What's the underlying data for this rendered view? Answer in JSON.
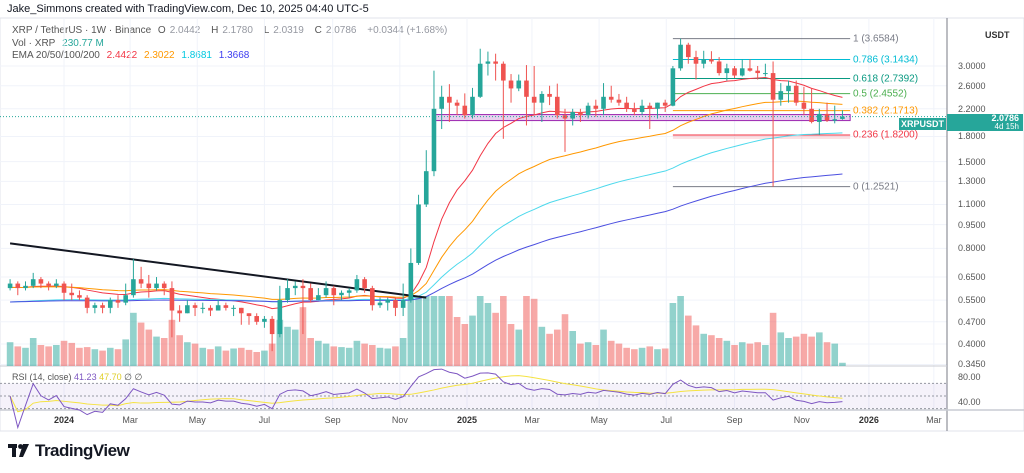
{
  "header": {
    "credit": "Jake_Simmons created with TradingView.com, Dec 10, 2025 04:40 UTC-5"
  },
  "legend": {
    "symbol": "XRP / TetherUS · 1W · Binance",
    "o_label": "O",
    "o": "2.0442",
    "h_label": "H",
    "h": "2.1780",
    "l_label": "L",
    "l": "2.0319",
    "c_label": "C",
    "c": "2.0786",
    "change": "+0.0344 (+1.68%)",
    "vol_label": "Vol · XRP",
    "vol": "230.77 M",
    "ema_label": "EMA 20/50/100/200",
    "ema20": "2.4422",
    "ema50": "2.3022",
    "ema100": "1.8681",
    "ema200": "1.3668"
  },
  "rsi_legend": {
    "label": "RSI (14, close)",
    "rsi": "41.23",
    "ma": "47.70",
    "empty1": "∅",
    "empty2": "∅"
  },
  "price_tag": {
    "symbol": "XRPUSDT",
    "price": "2.0786",
    "countdown": "4d 15h"
  },
  "footer": {
    "brand": "TradingView"
  },
  "colors": {
    "up": "#26a69a",
    "down": "#ef5350",
    "ema20": "#f23645",
    "ema50": "#ff9800",
    "ema100": "#4dd9ec",
    "ema200": "#4b4fe0",
    "rsi": "#7e57c2",
    "rsi_ma": "#f5e342",
    "zone": "#9c27b0"
  },
  "chart_data": {
    "type": "candlestick",
    "symbol": "XRPUSDT",
    "interval": "1W",
    "y_scale": "log",
    "y_unit": "USDT",
    "y_ticks": [
      "3.0000",
      "2.6000",
      "2.2000",
      "1.8000",
      "1.5000",
      "1.3000",
      "1.1000",
      "0.9500",
      "0.8000",
      "0.6500",
      "0.5500",
      "0.4700",
      "0.4000",
      "0.3450"
    ],
    "rsi_ticks": [
      "80.00",
      "40.00"
    ],
    "x_ticks": [
      {
        "label": "2024",
        "date": "2024-01-01",
        "bold": true
      },
      {
        "label": "Mar",
        "date": "2024-03-01"
      },
      {
        "label": "May",
        "date": "2024-05-01"
      },
      {
        "label": "Jul",
        "date": "2024-07-01"
      },
      {
        "label": "Sep",
        "date": "2024-09-01"
      },
      {
        "label": "Nov",
        "date": "2024-11-01"
      },
      {
        "label": "2025",
        "date": "2025-01-01",
        "bold": true
      },
      {
        "label": "Mar",
        "date": "2025-03-01"
      },
      {
        "label": "May",
        "date": "2025-05-01"
      },
      {
        "label": "Jul",
        "date": "2025-07-01"
      },
      {
        "label": "Sep",
        "date": "2025-09-01"
      },
      {
        "label": "Nov",
        "date": "2025-11-01"
      },
      {
        "label": "2026",
        "date": "2026-01-01",
        "bold": true
      },
      {
        "label": "Mar",
        "date": "2026-03-01"
      }
    ],
    "columns": [
      "date",
      "open",
      "high",
      "low",
      "close",
      "volume_m"
    ],
    "candles": [
      [
        "2023-11-13",
        0.6,
        0.64,
        0.59,
        0.62,
        1700
      ],
      [
        "2023-11-20",
        0.62,
        0.63,
        0.57,
        0.6,
        1400
      ],
      [
        "2023-11-27",
        0.6,
        0.63,
        0.59,
        0.61,
        1300
      ],
      [
        "2023-12-04",
        0.61,
        0.67,
        0.6,
        0.64,
        2000
      ],
      [
        "2023-12-11",
        0.64,
        0.65,
        0.6,
        0.62,
        1500
      ],
      [
        "2023-12-18",
        0.62,
        0.63,
        0.59,
        0.61,
        1400
      ],
      [
        "2023-12-25",
        0.61,
        0.64,
        0.6,
        0.62,
        1500
      ],
      [
        "2024-01-01",
        0.62,
        0.63,
        0.55,
        0.58,
        1800
      ],
      [
        "2024-01-08",
        0.58,
        0.62,
        0.55,
        0.57,
        1650
      ],
      [
        "2024-01-15",
        0.57,
        0.59,
        0.55,
        0.56,
        1300
      ],
      [
        "2024-01-22",
        0.56,
        0.57,
        0.5,
        0.52,
        1350
      ],
      [
        "2024-01-29",
        0.52,
        0.54,
        0.5,
        0.53,
        1200
      ],
      [
        "2024-02-05",
        0.53,
        0.54,
        0.5,
        0.52,
        1100
      ],
      [
        "2024-02-12",
        0.52,
        0.56,
        0.5,
        0.55,
        1300
      ],
      [
        "2024-02-19",
        0.55,
        0.57,
        0.52,
        0.54,
        1200
      ],
      [
        "2024-02-26",
        0.54,
        0.62,
        0.53,
        0.57,
        1900
      ],
      [
        "2024-03-04",
        0.57,
        0.74,
        0.56,
        0.64,
        3800
      ],
      [
        "2024-03-11",
        0.64,
        0.7,
        0.6,
        0.62,
        3100
      ],
      [
        "2024-03-18",
        0.62,
        0.66,
        0.56,
        0.6,
        2600
      ],
      [
        "2024-03-25",
        0.6,
        0.65,
        0.59,
        0.62,
        2100
      ],
      [
        "2024-04-01",
        0.62,
        0.63,
        0.57,
        0.6,
        2000
      ],
      [
        "2024-04-08",
        0.6,
        0.63,
        0.42,
        0.51,
        3300
      ],
      [
        "2024-04-15",
        0.51,
        0.53,
        0.47,
        0.5,
        2200
      ],
      [
        "2024-04-22",
        0.5,
        0.55,
        0.5,
        0.53,
        1700
      ],
      [
        "2024-04-29",
        0.53,
        0.54,
        0.49,
        0.52,
        1600
      ],
      [
        "2024-05-06",
        0.52,
        0.54,
        0.5,
        0.52,
        1300
      ],
      [
        "2024-05-13",
        0.52,
        0.53,
        0.49,
        0.51,
        1200
      ],
      [
        "2024-05-20",
        0.51,
        0.55,
        0.51,
        0.53,
        1400
      ],
      [
        "2024-05-27",
        0.53,
        0.54,
        0.51,
        0.52,
        1100
      ],
      [
        "2024-06-03",
        0.52,
        0.53,
        0.49,
        0.52,
        1250
      ],
      [
        "2024-06-10",
        0.52,
        0.52,
        0.46,
        0.5,
        1300
      ],
      [
        "2024-06-17",
        0.5,
        0.5,
        0.46,
        0.49,
        1150
      ],
      [
        "2024-06-24",
        0.49,
        0.5,
        0.46,
        0.47,
        1000
      ],
      [
        "2024-07-01",
        0.47,
        0.49,
        0.45,
        0.48,
        1100
      ],
      [
        "2024-07-08",
        0.48,
        0.49,
        0.38,
        0.43,
        1600
      ],
      [
        "2024-07-15",
        0.43,
        0.61,
        0.42,
        0.55,
        3300
      ],
      [
        "2024-07-22",
        0.55,
        0.64,
        0.54,
        0.6,
        2800
      ],
      [
        "2024-07-29",
        0.6,
        0.63,
        0.57,
        0.61,
        2600
      ],
      [
        "2024-08-05",
        0.61,
        0.64,
        0.43,
        0.6,
        4200
      ],
      [
        "2024-08-12",
        0.6,
        0.62,
        0.54,
        0.55,
        2000
      ],
      [
        "2024-08-19",
        0.55,
        0.6,
        0.55,
        0.57,
        1800
      ],
      [
        "2024-08-26",
        0.57,
        0.63,
        0.56,
        0.6,
        1600
      ],
      [
        "2024-09-02",
        0.6,
        0.61,
        0.53,
        0.57,
        1400
      ],
      [
        "2024-09-09",
        0.57,
        0.59,
        0.55,
        0.58,
        1350
      ],
      [
        "2024-09-16",
        0.58,
        0.6,
        0.56,
        0.59,
        1300
      ],
      [
        "2024-09-23",
        0.59,
        0.66,
        0.58,
        0.64,
        1800
      ],
      [
        "2024-09-30",
        0.64,
        0.65,
        0.58,
        0.6,
        1600
      ],
      [
        "2024-10-07",
        0.6,
        0.61,
        0.51,
        0.53,
        1500
      ],
      [
        "2024-10-14",
        0.53,
        0.56,
        0.52,
        0.54,
        1300
      ],
      [
        "2024-10-21",
        0.54,
        0.56,
        0.51,
        0.55,
        1250
      ],
      [
        "2024-10-28",
        0.55,
        0.56,
        0.49,
        0.52,
        1400
      ],
      [
        "2024-11-04",
        0.52,
        0.62,
        0.49,
        0.55,
        2000
      ],
      [
        "2024-11-11",
        0.55,
        0.8,
        0.54,
        0.72,
        5500
      ],
      [
        "2024-11-18",
        0.72,
        1.18,
        0.71,
        1.1,
        7800
      ],
      [
        "2024-11-25",
        1.1,
        1.63,
        1.08,
        1.4,
        9000
      ],
      [
        "2024-12-02",
        1.4,
        2.9,
        1.35,
        2.2,
        9500
      ],
      [
        "2024-12-09",
        2.2,
        2.6,
        1.9,
        2.4,
        8000
      ],
      [
        "2024-12-16",
        2.4,
        2.63,
        2.0,
        2.3,
        6000
      ],
      [
        "2024-12-23",
        2.3,
        2.35,
        2.1,
        2.25,
        3500
      ],
      [
        "2024-12-30",
        2.25,
        2.46,
        2.05,
        2.1,
        3000
      ],
      [
        "2025-01-06",
        2.1,
        2.56,
        2.05,
        2.4,
        3600
      ],
      [
        "2025-01-13",
        2.4,
        3.4,
        2.38,
        3.05,
        6500
      ],
      [
        "2025-01-20",
        3.05,
        3.33,
        2.8,
        3.1,
        4500
      ],
      [
        "2025-01-27",
        3.1,
        3.28,
        2.7,
        3.05,
        3800
      ],
      [
        "2025-02-03",
        3.05,
        3.1,
        1.77,
        2.7,
        7000
      ],
      [
        "2025-02-10",
        2.7,
        2.83,
        2.3,
        2.55,
        3000
      ],
      [
        "2025-02-17",
        2.55,
        2.82,
        2.5,
        2.7,
        2600
      ],
      [
        "2025-02-24",
        2.7,
        3.02,
        1.95,
        2.4,
        5800
      ],
      [
        "2025-03-03",
        2.4,
        3.0,
        2.1,
        2.3,
        4800
      ],
      [
        "2025-03-10",
        2.3,
        2.5,
        2.0,
        2.45,
        2800
      ],
      [
        "2025-03-17",
        2.45,
        2.6,
        2.26,
        2.4,
        2300
      ],
      [
        "2025-03-24",
        2.4,
        2.64,
        2.05,
        2.1,
        2600
      ],
      [
        "2025-03-31",
        2.1,
        2.2,
        1.61,
        2.05,
        3700
      ],
      [
        "2025-04-07",
        2.05,
        2.2,
        1.95,
        2.15,
        2500
      ],
      [
        "2025-04-14",
        2.15,
        2.2,
        2.0,
        2.1,
        1600
      ],
      [
        "2025-04-21",
        2.1,
        2.3,
        2.05,
        2.25,
        1700
      ],
      [
        "2025-04-28",
        2.25,
        2.35,
        2.08,
        2.2,
        1500
      ],
      [
        "2025-05-05",
        2.2,
        2.65,
        2.1,
        2.4,
        2600
      ],
      [
        "2025-05-12",
        2.4,
        2.6,
        2.3,
        2.35,
        1800
      ],
      [
        "2025-05-19",
        2.35,
        2.45,
        2.25,
        2.3,
        1600
      ],
      [
        "2025-05-26",
        2.3,
        2.4,
        2.15,
        2.2,
        1300
      ],
      [
        "2025-06-02",
        2.2,
        2.3,
        2.1,
        2.15,
        1200
      ],
      [
        "2025-06-09",
        2.15,
        2.35,
        2.1,
        2.25,
        1300
      ],
      [
        "2025-06-16",
        2.25,
        2.3,
        1.9,
        2.2,
        1400
      ],
      [
        "2025-06-23",
        2.2,
        2.3,
        2.05,
        2.3,
        1200
      ],
      [
        "2025-06-30",
        2.3,
        2.35,
        2.15,
        2.25,
        1250
      ],
      [
        "2025-07-07",
        2.25,
        3.0,
        2.24,
        2.95,
        4500
      ],
      [
        "2025-07-14",
        2.95,
        3.6584,
        2.9,
        3.5,
        5200
      ],
      [
        "2025-07-21",
        3.5,
        3.55,
        3.05,
        3.2,
        3600
      ],
      [
        "2025-07-28",
        3.2,
        3.35,
        2.72,
        3.05,
        2900
      ],
      [
        "2025-08-04",
        3.05,
        3.35,
        2.95,
        3.15,
        2300
      ],
      [
        "2025-08-11",
        3.15,
        3.34,
        3.05,
        3.1,
        2200
      ],
      [
        "2025-08-18",
        3.1,
        3.2,
        2.8,
        2.85,
        2000
      ],
      [
        "2025-08-25",
        2.85,
        3.05,
        2.7,
        2.95,
        1800
      ],
      [
        "2025-09-01",
        2.95,
        3.0,
        2.75,
        2.8,
        1500
      ],
      [
        "2025-09-08",
        2.8,
        3.15,
        2.78,
        2.95,
        1700
      ],
      [
        "2025-09-15",
        2.95,
        3.15,
        2.88,
        2.9,
        1600
      ],
      [
        "2025-09-22",
        2.9,
        3.0,
        2.72,
        2.85,
        1700
      ],
      [
        "2025-09-29",
        2.85,
        3.05,
        2.78,
        2.85,
        1500
      ],
      [
        "2025-10-06",
        2.85,
        3.1,
        1.2521,
        2.35,
        3800
      ],
      [
        "2025-10-13",
        2.35,
        2.65,
        2.25,
        2.5,
        2400
      ],
      [
        "2025-10-20",
        2.5,
        2.7,
        2.3,
        2.6,
        2000
      ],
      [
        "2025-10-27",
        2.6,
        2.7,
        2.25,
        2.3,
        2100
      ],
      [
        "2025-11-03",
        2.3,
        2.58,
        2.1,
        2.2,
        2300
      ],
      [
        "2025-11-10",
        2.2,
        2.55,
        1.98,
        2.0,
        2100
      ],
      [
        "2025-11-17",
        2.0,
        2.2,
        1.82,
        2.12,
        2400
      ],
      [
        "2025-11-24",
        2.12,
        2.3,
        2.0,
        2.02,
        1700
      ],
      [
        "2025-12-01",
        2.02,
        2.25,
        1.98,
        2.04,
        1600
      ],
      [
        "2025-12-08",
        2.0442,
        2.178,
        2.0319,
        2.0786,
        230.77
      ]
    ],
    "fibonacci": {
      "from_date": "2025-07-07",
      "to_date": "2025-12-15",
      "levels": [
        {
          "label": "1 (3.6584)",
          "price": 3.6584,
          "color": "#787b86"
        },
        {
          "label": "0.786 (3.1434)",
          "price": 3.1434,
          "color": "#00bcd4"
        },
        {
          "label": "0.618 (2.7392)",
          "price": 2.7392,
          "color": "#089981"
        },
        {
          "label": "0.5 (2.4552)",
          "price": 2.4552,
          "color": "#4caf50"
        },
        {
          "label": "0.382 (2.1713)",
          "price": 2.1713,
          "color": "#ff9800"
        },
        {
          "label": "0.236 (1.8200)",
          "price": 1.82,
          "color": "#f23645"
        },
        {
          "label": "0 (1.2521)",
          "price": 1.2521,
          "color": "#787b86"
        }
      ]
    },
    "support_zone": {
      "from_date": "2024-12-02",
      "to_date": "2025-12-15",
      "low": 2.02,
      "high": 2.11
    },
    "trendline": {
      "start": {
        "date": "2023-11-13",
        "price": 0.83
      },
      "end": {
        "date": "2024-11-25",
        "price": 0.56
      }
    },
    "last_price": 2.0786
  }
}
